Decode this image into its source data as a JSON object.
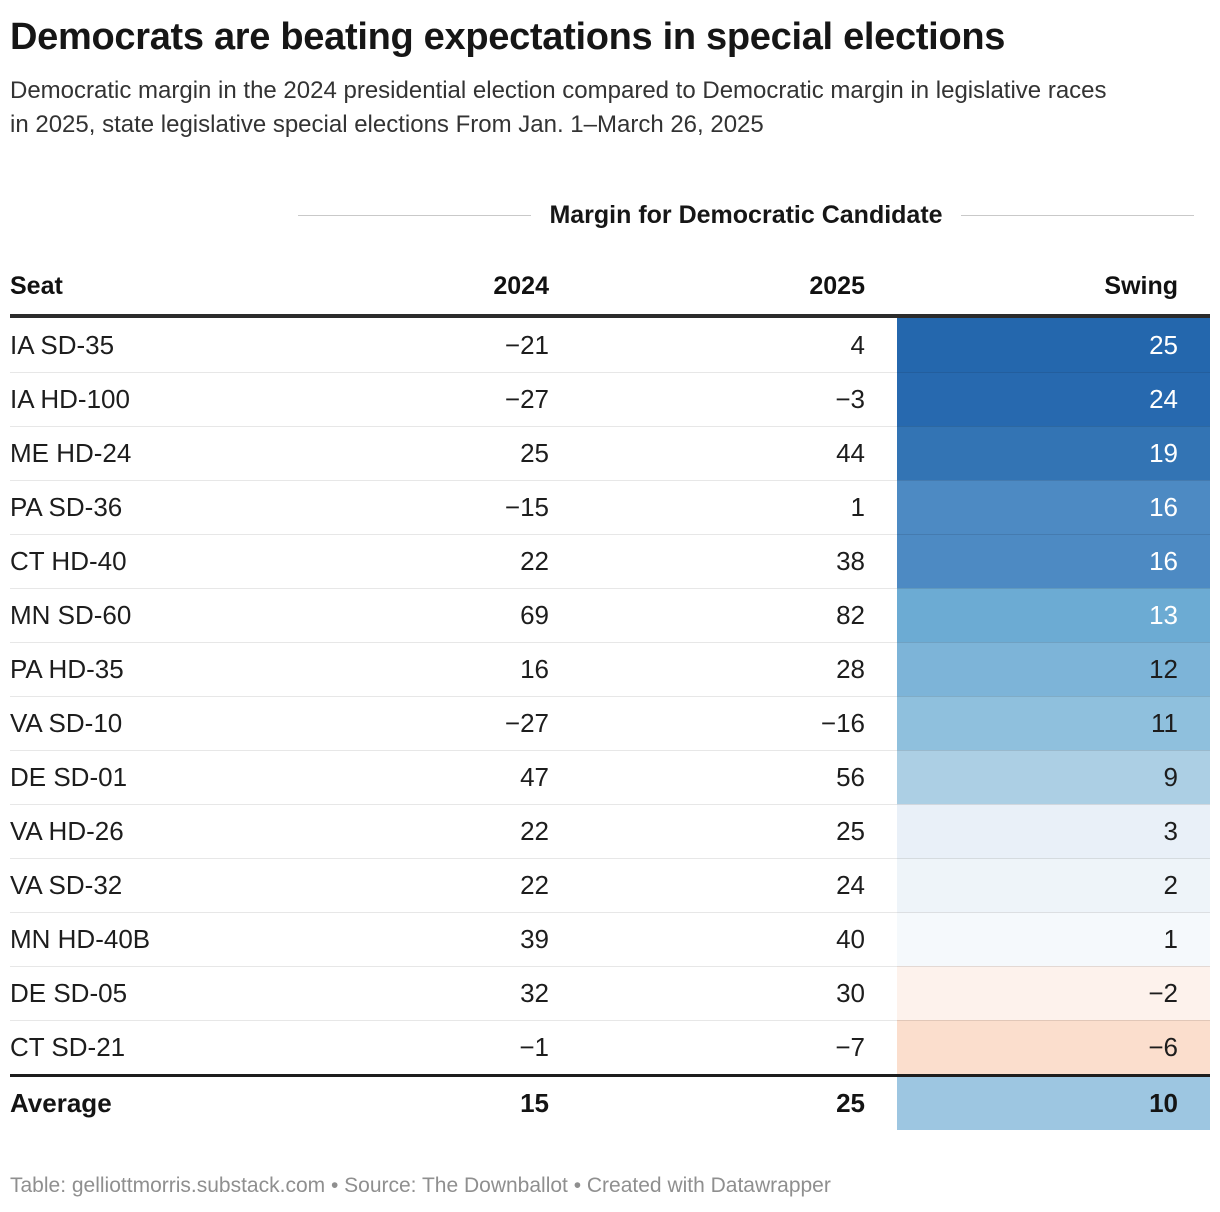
{
  "header": {
    "title": "Democrats are beating expectations in special elections",
    "subtitle": "Democratic margin in the 2024 presidential election compared to Democratic margin in legislative races in 2025, state legislative special elections From Jan. 1–March 26, 2025"
  },
  "table": {
    "group_header": "Margin for Democratic Candidate",
    "columns": {
      "seat": "Seat",
      "y2024": "2024",
      "y2025": "2025",
      "swing": "Swing"
    },
    "rows": [
      {
        "seat": "IA SD-35",
        "y2024": "−21",
        "y2025": "4",
        "swing": "25",
        "swing_bg": "#2467ad",
        "swing_color": "#ffffff"
      },
      {
        "seat": "IA HD-100",
        "y2024": "−27",
        "y2025": "−3",
        "swing": "24",
        "swing_bg": "#2769af",
        "swing_color": "#ffffff"
      },
      {
        "seat": "ME HD-24",
        "y2024": "25",
        "y2025": "44",
        "swing": "19",
        "swing_bg": "#3374b4",
        "swing_color": "#ffffff"
      },
      {
        "seat": "PA SD-36",
        "y2024": "−15",
        "y2025": "1",
        "swing": "16",
        "swing_bg": "#4d8ac3",
        "swing_color": "#ffffff"
      },
      {
        "seat": "CT HD-40",
        "y2024": "22",
        "y2025": "38",
        "swing": "16",
        "swing_bg": "#4d8ac3",
        "swing_color": "#ffffff"
      },
      {
        "seat": "MN SD-60",
        "y2024": "69",
        "y2025": "82",
        "swing": "13",
        "swing_bg": "#6cabd3",
        "swing_color": "#ffffff"
      },
      {
        "seat": "PA HD-35",
        "y2024": "16",
        "y2025": "28",
        "swing": "12",
        "swing_bg": "#7db4d8",
        "swing_color": "#1d1d1d"
      },
      {
        "seat": "VA SD-10",
        "y2024": "−27",
        "y2025": "−16",
        "swing": "11",
        "swing_bg": "#8fc0dd",
        "swing_color": "#1d1d1d"
      },
      {
        "seat": "DE SD-01",
        "y2024": "47",
        "y2025": "56",
        "swing": "9",
        "swing_bg": "#accfe4",
        "swing_color": "#1d1d1d"
      },
      {
        "seat": "VA HD-26",
        "y2024": "22",
        "y2025": "25",
        "swing": "3",
        "swing_bg": "#e9f0f8",
        "swing_color": "#1d1d1d"
      },
      {
        "seat": "VA SD-32",
        "y2024": "22",
        "y2025": "24",
        "swing": "2",
        "swing_bg": "#eef4f9",
        "swing_color": "#1d1d1d"
      },
      {
        "seat": "MN HD-40B",
        "y2024": "39",
        "y2025": "40",
        "swing": "1",
        "swing_bg": "#f5f9fc",
        "swing_color": "#1d1d1d"
      },
      {
        "seat": "DE SD-05",
        "y2024": "32",
        "y2025": "30",
        "swing": "−2",
        "swing_bg": "#fdf2ec",
        "swing_color": "#1d1d1d"
      },
      {
        "seat": "CT SD-21",
        "y2024": "−1",
        "y2025": "−7",
        "swing": "−6",
        "swing_bg": "#fbdecd",
        "swing_color": "#1d1d1d"
      }
    ],
    "average": {
      "seat": "Average",
      "y2024": "15",
      "y2025": "25",
      "swing": "10",
      "swing_bg": "#9dc6e1",
      "swing_color": "#141414"
    }
  },
  "footer": {
    "text": "Table: gelliottmorris.substack.com • Source: The Downballot • Created with Datawrapper"
  },
  "chart_data": {
    "type": "table",
    "title": "Democrats are beating expectations in special elections",
    "subtitle": "Democratic margin in the 2024 presidential election compared to Democratic margin in legislative races in 2025, state legislative special elections From Jan. 1–March 26, 2025",
    "column_group_label": "Margin for Democratic Candidate",
    "columns": [
      "Seat",
      "2024",
      "2025",
      "Swing"
    ],
    "rows": [
      [
        "IA SD-35",
        -21,
        4,
        25
      ],
      [
        "IA HD-100",
        -27,
        -3,
        24
      ],
      [
        "ME HD-24",
        25,
        44,
        19
      ],
      [
        "PA SD-36",
        -15,
        1,
        16
      ],
      [
        "CT HD-40",
        22,
        38,
        16
      ],
      [
        "MN SD-60",
        69,
        82,
        13
      ],
      [
        "PA HD-35",
        16,
        28,
        12
      ],
      [
        "VA SD-10",
        -27,
        -16,
        11
      ],
      [
        "DE SD-01",
        47,
        56,
        9
      ],
      [
        "VA HD-26",
        22,
        25,
        3
      ],
      [
        "VA SD-32",
        22,
        24,
        2
      ],
      [
        "MN HD-40B",
        39,
        40,
        1
      ],
      [
        "DE SD-05",
        32,
        30,
        -2
      ],
      [
        "CT SD-21",
        -1,
        -7,
        -6
      ]
    ],
    "average_row": [
      "Average",
      15,
      25,
      10
    ],
    "heatmap_column": "Swing",
    "heatmap_scale": {
      "type": "diverging",
      "positive_color": "#2467ad",
      "negative_color": "#f4a77a",
      "neutral_color": "#ffffff"
    }
  }
}
